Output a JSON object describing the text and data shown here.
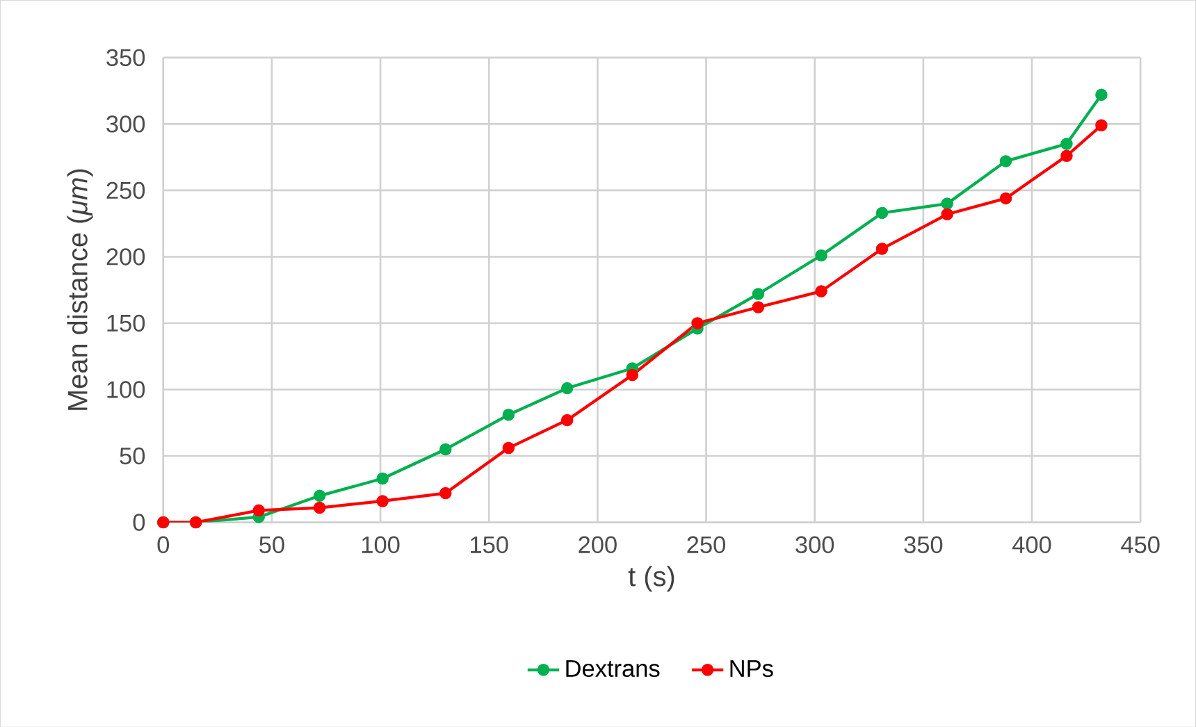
{
  "chart_data": {
    "type": "line",
    "xlabel": "t (s)",
    "ylabel": "Mean distance (*μm*)",
    "x": [
      0,
      15,
      44,
      72,
      101,
      130,
      159,
      186,
      216,
      246,
      274,
      303,
      331,
      361,
      388,
      416,
      432
    ],
    "series": [
      {
        "name": "Dextrans",
        "color": "#00b050",
        "values": [
          0,
          0,
          4,
          20,
          33,
          55,
          81,
          101,
          116,
          146,
          172,
          201,
          233,
          240,
          272,
          285,
          322
        ]
      },
      {
        "name": "NPs",
        "color": "#ff0000",
        "values": [
          0,
          0,
          9,
          11,
          16,
          22,
          56,
          77,
          111,
          150,
          162,
          174,
          206,
          232,
          244,
          276,
          299
        ]
      }
    ],
    "xlim": [
      0,
      450
    ],
    "xticks": [
      0,
      50,
      100,
      150,
      200,
      250,
      300,
      350,
      400,
      450
    ],
    "ylim": [
      0,
      350
    ],
    "yticks": [
      0,
      50,
      100,
      150,
      200,
      250,
      300,
      350
    ],
    "grid": true,
    "legend": "bottom",
    "marker": "circle",
    "line_style": "solid"
  }
}
